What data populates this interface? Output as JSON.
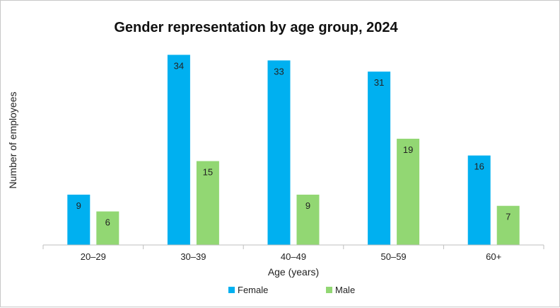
{
  "chart_data": {
    "type": "bar",
    "title": "Gender representation by age group, 2024",
    "xlabel": "Age (years)",
    "ylabel": "Number of employees",
    "categories": [
      "20–29",
      "30–39",
      "40–49",
      "50–59",
      "60+"
    ],
    "series": [
      {
        "name": "Female",
        "color": "#00b0f0",
        "values": [
          9,
          34,
          33,
          31,
          16
        ]
      },
      {
        "name": "Male",
        "color": "#92d773",
        "values": [
          6,
          15,
          9,
          19,
          7
        ]
      }
    ],
    "ylim": [
      0,
      35
    ],
    "grid": false,
    "legend_position": "bottom"
  }
}
